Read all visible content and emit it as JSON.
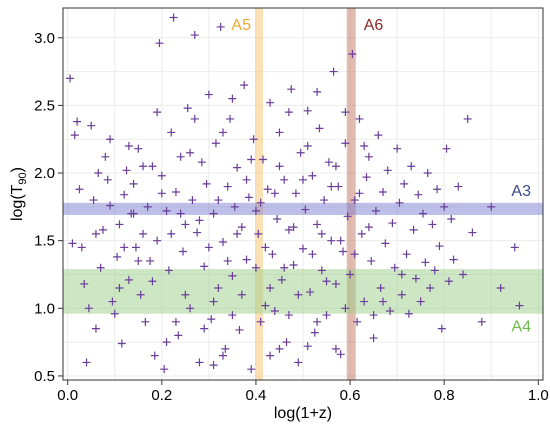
{
  "chart_data": {
    "type": "scatter",
    "xlabel": "log(1+z)",
    "ylabel_base": "log(T",
    "ylabel_sub": "90",
    "ylabel_close": ")",
    "xlim": [
      -0.01,
      1.01
    ],
    "ylim": [
      0.47,
      3.22
    ],
    "xticks": [
      0.0,
      0.2,
      0.4,
      0.6,
      0.8,
      1.0
    ],
    "xtick_labels": [
      "0.0",
      "0.2",
      "0.4",
      "0.6",
      "0.8",
      "1.0"
    ],
    "yticks": [
      0.5,
      1.0,
      1.5,
      2.0,
      2.5,
      3.0
    ],
    "ytick_labels": [
      "0.5",
      "1.0",
      "1.5",
      "2.0",
      "2.5",
      "3.0"
    ],
    "grid": true,
    "marker": "plus",
    "colors": {
      "points": "#6a3d9a",
      "A3": "#7b7fd1",
      "A4": "#9bd08a",
      "A5": "#f7c97a",
      "A6": "#c9826f",
      "A3_label": "#3b4a8a",
      "A4_label": "#6dbb4a",
      "A5_label": "#f0a830",
      "A6_label": "#8a2a2a"
    },
    "regions": [
      {
        "id": "A5",
        "label": "A5",
        "orientation": "vertical",
        "range": [
          0.398,
          0.415
        ]
      },
      {
        "id": "A6",
        "label": "A6",
        "orientation": "vertical",
        "range": [
          0.593,
          0.612
        ]
      },
      {
        "id": "A3",
        "label": "A3",
        "orientation": "horizontal",
        "range": [
          1.69,
          1.78
        ]
      },
      {
        "id": "A4",
        "label": "A4",
        "orientation": "horizontal",
        "range": [
          0.96,
          1.29
        ]
      }
    ],
    "points": [
      [
        0.005,
        2.7
      ],
      [
        0.01,
        1.48
      ],
      [
        0.015,
        2.28
      ],
      [
        0.02,
        2.38
      ],
      [
        0.025,
        1.88
      ],
      [
        0.03,
        1.45
      ],
      [
        0.035,
        1.18
      ],
      [
        0.04,
        0.6
      ],
      [
        0.045,
        1.0
      ],
      [
        0.05,
        2.35
      ],
      [
        0.055,
        1.8
      ],
      [
        0.06,
        0.85
      ],
      [
        0.065,
        2.0
      ],
      [
        0.07,
        1.3
      ],
      [
        0.075,
        1.58
      ],
      [
        0.08,
        2.12
      ],
      [
        0.085,
        1.95
      ],
      [
        0.09,
        1.76
      ],
      [
        0.095,
        1.05
      ],
      [
        0.1,
        0.96
      ],
      [
        0.105,
        1.38
      ],
      [
        0.11,
        1.62
      ],
      [
        0.115,
        0.74
      ],
      [
        0.12,
        1.84
      ],
      [
        0.125,
        2.02
      ],
      [
        0.13,
        1.21
      ],
      [
        0.135,
        1.7
      ],
      [
        0.14,
        1.92
      ],
      [
        0.145,
        1.45
      ],
      [
        0.15,
        2.18
      ],
      [
        0.155,
        1.1
      ],
      [
        0.16,
        1.55
      ],
      [
        0.165,
        0.9
      ],
      [
        0.17,
        1.75
      ],
      [
        0.175,
        1.35
      ],
      [
        0.18,
        2.05
      ],
      [
        0.185,
        0.65
      ],
      [
        0.19,
        1.5
      ],
      [
        0.195,
        2.96
      ],
      [
        0.2,
        1.98
      ],
      [
        0.205,
        0.55
      ],
      [
        0.21,
        1.72
      ],
      [
        0.215,
        1.28
      ],
      [
        0.22,
        2.3
      ],
      [
        0.225,
        3.15
      ],
      [
        0.23,
        1.86
      ],
      [
        0.235,
        0.8
      ],
      [
        0.24,
        2.12
      ],
      [
        0.245,
        1.42
      ],
      [
        0.25,
        1.62
      ],
      [
        0.255,
        2.48
      ],
      [
        0.26,
        1.0
      ],
      [
        0.265,
        1.8
      ],
      [
        0.27,
        3.02
      ],
      [
        0.275,
        1.56
      ],
      [
        0.28,
        0.6
      ],
      [
        0.285,
        2.08
      ],
      [
        0.29,
        1.31
      ],
      [
        0.295,
        1.92
      ],
      [
        0.3,
        2.58
      ],
      [
        0.305,
        0.92
      ],
      [
        0.31,
        1.7
      ],
      [
        0.315,
        2.22
      ],
      [
        0.32,
        1.15
      ],
      [
        0.325,
        3.08
      ],
      [
        0.33,
        1.49
      ],
      [
        0.335,
        0.7
      ],
      [
        0.34,
        1.9
      ],
      [
        0.345,
        2.4
      ],
      [
        0.35,
        1.24
      ],
      [
        0.355,
        1.75
      ],
      [
        0.36,
        2.04
      ],
      [
        0.365,
        0.84
      ],
      [
        0.37,
        1.6
      ],
      [
        0.375,
        2.65
      ],
      [
        0.38,
        1.36
      ],
      [
        0.385,
        1.82
      ],
      [
        0.39,
        0.55
      ],
      [
        0.395,
        2.25
      ],
      [
        0.4,
        1.72
      ],
      [
        0.405,
        1.55
      ],
      [
        0.41,
        1.78
      ],
      [
        0.415,
        2.1
      ],
      [
        0.42,
        1.02
      ],
      [
        0.425,
        1.88
      ],
      [
        0.43,
        2.52
      ],
      [
        0.435,
        1.4
      ],
      [
        0.44,
        0.98
      ],
      [
        0.445,
        1.66
      ],
      [
        0.45,
        2.3
      ],
      [
        0.455,
        1.21
      ],
      [
        0.46,
        1.95
      ],
      [
        0.465,
        0.75
      ],
      [
        0.47,
        1.58
      ],
      [
        0.475,
        2.62
      ],
      [
        0.48,
        1.32
      ],
      [
        0.485,
        1.85
      ],
      [
        0.49,
        0.6
      ],
      [
        0.495,
        2.15
      ],
      [
        0.5,
        1.44
      ],
      [
        0.505,
        1.73
      ],
      [
        0.51,
        2.46
      ],
      [
        0.515,
        1.12
      ],
      [
        0.52,
        1.98
      ],
      [
        0.525,
        0.82
      ],
      [
        0.53,
        1.62
      ],
      [
        0.535,
        2.33
      ],
      [
        0.54,
        1.28
      ],
      [
        0.545,
        1.8
      ],
      [
        0.55,
        0.95
      ],
      [
        0.555,
        2.08
      ],
      [
        0.56,
        1.5
      ],
      [
        0.565,
        2.75
      ],
      [
        0.57,
        1.18
      ],
      [
        0.575,
        1.9
      ],
      [
        0.58,
        0.66
      ],
      [
        0.585,
        1.42
      ],
      [
        0.59,
        2.22
      ],
      [
        0.595,
        1.68
      ],
      [
        0.6,
        1.25
      ],
      [
        0.605,
        2.88
      ],
      [
        0.61,
        1.8
      ],
      [
        0.615,
        0.9
      ],
      [
        0.62,
        2.4
      ],
      [
        0.625,
        1.55
      ],
      [
        0.63,
        1.05
      ],
      [
        0.635,
        1.97
      ],
      [
        0.64,
        2.12
      ],
      [
        0.645,
        1.35
      ],
      [
        0.65,
        0.78
      ],
      [
        0.655,
        1.72
      ],
      [
        0.66,
        2.28
      ],
      [
        0.665,
        1.15
      ],
      [
        0.67,
        1.86
      ],
      [
        0.675,
        1.48
      ],
      [
        0.68,
        2.02
      ],
      [
        0.685,
        0.98
      ],
      [
        0.69,
        1.63
      ],
      [
        0.695,
        1.3
      ],
      [
        0.7,
        2.18
      ],
      [
        0.705,
        1.78
      ],
      [
        0.71,
        1.1
      ],
      [
        0.715,
        1.92
      ],
      [
        0.72,
        1.4
      ],
      [
        0.725,
        0.96
      ],
      [
        0.73,
        2.05
      ],
      [
        0.735,
        1.58
      ],
      [
        0.74,
        1.22
      ],
      [
        0.745,
        1.84
      ],
      [
        0.75,
        1.05
      ],
      [
        0.755,
        1.7
      ],
      [
        0.76,
        1.34
      ],
      [
        0.765,
        2.0
      ],
      [
        0.77,
        1.15
      ],
      [
        0.775,
        1.62
      ],
      [
        0.78,
        1.28
      ],
      [
        0.785,
        1.88
      ],
      [
        0.79,
        1.46
      ],
      [
        0.795,
        0.85
      ],
      [
        0.8,
        1.75
      ],
      [
        0.805,
        2.18
      ],
      [
        0.81,
        1.2
      ],
      [
        0.815,
        1.66
      ],
      [
        0.82,
        1.36
      ],
      [
        0.83,
        1.9
      ],
      [
        0.84,
        1.25
      ],
      [
        0.85,
        2.4
      ],
      [
        0.86,
        1.56
      ],
      [
        0.88,
        0.9
      ],
      [
        0.9,
        1.75
      ],
      [
        0.92,
        1.15
      ],
      [
        0.95,
        1.45
      ],
      [
        0.96,
        1.02
      ],
      [
        0.18,
        1.2
      ],
      [
        0.24,
        1.7
      ],
      [
        0.3,
        1.45
      ],
      [
        0.36,
        1.55
      ],
      [
        0.42,
        1.45
      ],
      [
        0.48,
        1.6
      ],
      [
        0.54,
        1.55
      ],
      [
        0.32,
        1.8
      ],
      [
        0.38,
        1.95
      ],
      [
        0.44,
        1.85
      ],
      [
        0.5,
        1.95
      ],
      [
        0.56,
        1.9
      ],
      [
        0.62,
        1.85
      ],
      [
        0.28,
        1.65
      ],
      [
        0.34,
        1.35
      ],
      [
        0.4,
        1.3
      ],
      [
        0.46,
        1.3
      ],
      [
        0.52,
        1.4
      ],
      [
        0.58,
        1.5
      ],
      [
        0.64,
        1.6
      ],
      [
        0.22,
        1.55
      ],
      [
        0.26,
        2.15
      ],
      [
        0.33,
        2.3
      ],
      [
        0.39,
        2.1
      ],
      [
        0.45,
        2.05
      ],
      [
        0.51,
        2.2
      ],
      [
        0.57,
        2.05
      ],
      [
        0.63,
        2.2
      ],
      [
        0.16,
        2.05
      ],
      [
        0.2,
        1.85
      ],
      [
        0.14,
        1.7
      ],
      [
        0.12,
        1.45
      ],
      [
        0.25,
        1.1
      ],
      [
        0.31,
        1.05
      ],
      [
        0.37,
        1.1
      ],
      [
        0.43,
        1.15
      ],
      [
        0.49,
        1.1
      ],
      [
        0.55,
        1.2
      ],
      [
        0.61,
        1.4
      ],
      [
        0.67,
        1.05
      ],
      [
        0.23,
        0.9
      ],
      [
        0.29,
        0.85
      ],
      [
        0.35,
        0.95
      ],
      [
        0.41,
        0.9
      ],
      [
        0.47,
        0.95
      ],
      [
        0.53,
        0.9
      ],
      [
        0.59,
        1.0
      ],
      [
        0.65,
        0.95
      ],
      [
        0.71,
        1.25
      ],
      [
        0.27,
        2.4
      ],
      [
        0.35,
        2.55
      ],
      [
        0.47,
        2.45
      ],
      [
        0.53,
        2.6
      ],
      [
        0.59,
        2.45
      ],
      [
        0.19,
        2.45
      ],
      [
        0.13,
        2.2
      ],
      [
        0.09,
        2.25
      ],
      [
        0.21,
        0.75
      ],
      [
        0.33,
        0.65
      ],
      [
        0.45,
        0.7
      ],
      [
        0.57,
        0.7
      ],
      [
        0.31,
        0.58
      ],
      [
        0.43,
        0.65
      ],
      [
        0.51,
        0.72
      ],
      [
        0.15,
        1.35
      ],
      [
        0.11,
        1.15
      ],
      [
        0.06,
        1.55
      ]
    ]
  }
}
